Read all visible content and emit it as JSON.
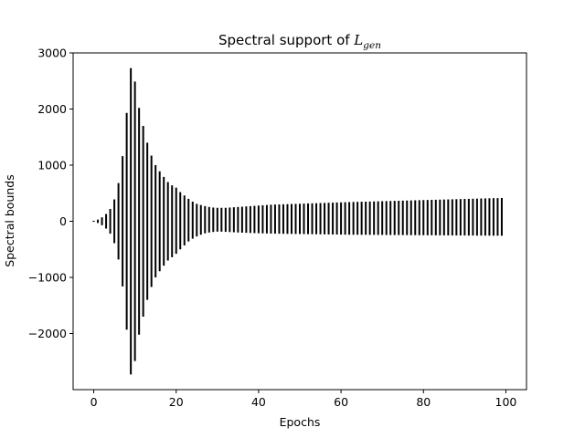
{
  "chart_data": {
    "type": "errorbar",
    "title": "Spectral support of ",
    "title_math": "L",
    "title_math_sub": "gen",
    "xlabel": "Epochs",
    "ylabel": "Spectral bounds",
    "xlim": [
      -5,
      105
    ],
    "ylim": [
      -3000,
      3000
    ],
    "xticks": [
      0,
      20,
      40,
      60,
      80,
      100
    ],
    "xtick_labels": [
      "0",
      "20",
      "40",
      "60",
      "80",
      "100"
    ],
    "yticks": [
      -2000,
      -1000,
      0,
      1000,
      2000,
      3000
    ],
    "ytick_labels": [
      "−2000",
      "−1000",
      "0",
      "1000",
      "2000",
      "3000"
    ],
    "grid": false,
    "bar_color": "#000000",
    "x": [
      0,
      1,
      2,
      3,
      4,
      5,
      6,
      7,
      8,
      9,
      10,
      11,
      12,
      13,
      14,
      15,
      16,
      17,
      18,
      19,
      20,
      21,
      22,
      23,
      24,
      25,
      26,
      27,
      28,
      29,
      30,
      31,
      32,
      33,
      34,
      35,
      36,
      37,
      38,
      39,
      40,
      41,
      42,
      43,
      44,
      45,
      46,
      47,
      48,
      49,
      50,
      51,
      52,
      53,
      54,
      55,
      56,
      57,
      58,
      59,
      60,
      61,
      62,
      63,
      64,
      65,
      66,
      67,
      68,
      69,
      70,
      71,
      72,
      73,
      74,
      75,
      76,
      77,
      78,
      79,
      80,
      81,
      82,
      83,
      84,
      85,
      86,
      87,
      88,
      89,
      90,
      91,
      92,
      93,
      94,
      95,
      96,
      97,
      98,
      99
    ],
    "upper": [
      10,
      30,
      70,
      130,
      220,
      390,
      680,
      1160,
      1930,
      2730,
      2490,
      2020,
      1700,
      1400,
      1170,
      1000,
      890,
      790,
      700,
      640,
      600,
      520,
      460,
      400,
      350,
      310,
      290,
      270,
      255,
      245,
      240,
      240,
      240,
      245,
      250,
      255,
      260,
      265,
      270,
      275,
      280,
      285,
      290,
      295,
      298,
      300,
      303,
      306,
      308,
      310,
      312,
      315,
      318,
      320,
      322,
      325,
      327,
      330,
      332,
      335,
      337,
      340,
      342,
      344,
      346,
      348,
      350,
      352,
      354,
      356,
      358,
      360,
      362,
      364,
      366,
      368,
      370,
      372,
      374,
      376,
      378,
      380,
      382,
      384,
      386,
      388,
      390,
      392,
      394,
      396,
      398,
      400,
      402,
      404,
      406,
      408,
      410,
      412,
      413,
      415
    ],
    "lower": [
      -10,
      -30,
      -70,
      -130,
      -220,
      -390,
      -680,
      -1160,
      -1930,
      -2730,
      -2490,
      -2020,
      -1700,
      -1400,
      -1170,
      -1000,
      -890,
      -790,
      -700,
      -640,
      -580,
      -500,
      -430,
      -360,
      -310,
      -270,
      -240,
      -215,
      -200,
      -190,
      -185,
      -185,
      -188,
      -192,
      -196,
      -200,
      -203,
      -206,
      -209,
      -211,
      -213,
      -215,
      -217,
      -219,
      -220,
      -222,
      -223,
      -224,
      -225,
      -226,
      -227,
      -228,
      -229,
      -230,
      -231,
      -232,
      -233,
      -234,
      -235,
      -236,
      -237,
      -238,
      -239,
      -240,
      -240,
      -241,
      -241,
      -242,
      -242,
      -243,
      -243,
      -244,
      -244,
      -245,
      -245,
      -246,
      -246,
      -247,
      -247,
      -248,
      -248,
      -249,
      -249,
      -250,
      -250,
      -251,
      -251,
      -252,
      -252,
      -253,
      -253,
      -254,
      -254,
      -255,
      -255,
      -256,
      -256,
      -257,
      -257,
      -258
    ]
  }
}
